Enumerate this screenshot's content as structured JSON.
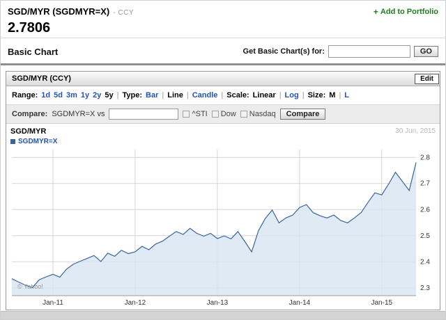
{
  "header": {
    "symbol_title": "SGD/MYR (SGDMYR=X)",
    "symbol_suffix": "- CCY",
    "plus_icon": "+",
    "add_to_portfolio": "Add to Portfolio",
    "price": "2.7806"
  },
  "section": {
    "title": "Basic Chart",
    "get_chart_label": "Get Basic Chart(s) for:",
    "search_value": "",
    "go_button": "GO"
  },
  "chart_module": {
    "title": "SGD/MYR (CCY)",
    "edit_button": "Edit",
    "toolbar": {
      "range_label": "Range:",
      "ranges": [
        "1d",
        "5d",
        "3m",
        "1y",
        "2y",
        "5y"
      ],
      "selected_range": "5y",
      "type_label": "Type:",
      "types": [
        "Bar",
        "Line",
        "Candle"
      ],
      "selected_type": "Line",
      "scale_label": "Scale:",
      "scales": [
        "Linear",
        "Log"
      ],
      "selected_scale": "Linear",
      "size_label": "Size:",
      "sizes": [
        "M",
        "L"
      ],
      "selected_size": "M",
      "separator": "|"
    },
    "compare": {
      "label": "Compare:",
      "symbol": "SGDMYR=X vs",
      "checkboxes": [
        "^STI",
        "Dow",
        "Nasdaq"
      ],
      "button": "Compare"
    },
    "chart_header": {
      "title": "SGD/MYR",
      "legend": "SGDMYR=X",
      "date": "30 Jun, 2015",
      "copyright": "© Yahoo!"
    }
  },
  "chart_data": {
    "type": "area",
    "title": "SGD/MYR",
    "series_name": "SGDMYR=X",
    "x_unit": "month",
    "x_start": "Jul-2010",
    "x_end": "Jun-2015",
    "values": [
      2.335,
      2.322,
      2.31,
      2.301,
      2.331,
      2.342,
      2.352,
      2.341,
      2.372,
      2.391,
      2.402,
      2.413,
      2.424,
      2.401,
      2.433,
      2.421,
      2.444,
      2.431,
      2.438,
      2.459,
      2.446,
      2.468,
      2.479,
      2.498,
      2.516,
      2.505,
      2.528,
      2.509,
      2.498,
      2.509,
      2.489,
      2.499,
      2.488,
      2.516,
      2.478,
      2.438,
      2.519,
      2.566,
      2.598,
      2.549,
      2.568,
      2.579,
      2.608,
      2.619,
      2.588,
      2.576,
      2.568,
      2.579,
      2.558,
      2.549,
      2.568,
      2.589,
      2.628,
      2.664,
      2.656,
      2.698,
      2.743,
      2.708,
      2.673,
      2.7806
    ],
    "last_value": 2.7806,
    "x_tick_indices": [
      6,
      18,
      30,
      42,
      54
    ],
    "x_tick_labels": [
      "Jan-11",
      "Jan-12",
      "Jan-13",
      "Jan-14",
      "Jan-15"
    ],
    "y_ticks": [
      2.3,
      2.4,
      2.5,
      2.6,
      2.7,
      2.8
    ],
    "ylim": [
      2.27,
      2.83
    ],
    "grid": true,
    "legend_position": "top-left",
    "line_color": "#3a639c",
    "fill_color": "#d7e5f2"
  },
  "colors": {
    "link_blue": "#2353b2",
    "portfolio_green": "#1f7d1f",
    "chart_line": "#3a639c",
    "chart_fill": "#d7e5f2",
    "compare_bar_bg": "#ececec"
  }
}
